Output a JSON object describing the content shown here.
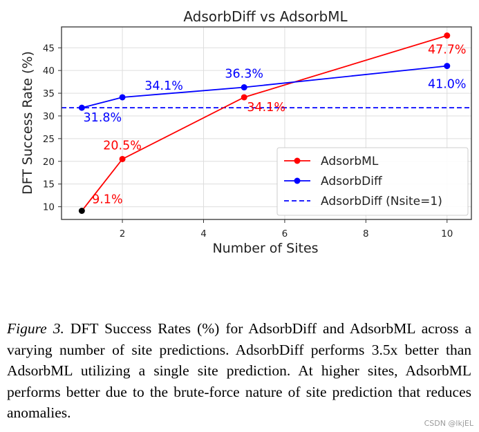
{
  "chart_data": {
    "type": "line",
    "title": "AdsorbDiff vs AdsorbML",
    "xlabel": "Number of Sites",
    "ylabel": "DFT Success Rate (%)",
    "xlim": [
      0.5,
      10.6
    ],
    "ylim": [
      7.2,
      49.6
    ],
    "xticks": [
      2,
      4,
      6,
      8,
      10
    ],
    "yticks": [
      10,
      15,
      20,
      25,
      30,
      35,
      40,
      45
    ],
    "grid": true,
    "legend_position": "center-right",
    "series": [
      {
        "name": "AdsorbML",
        "color": "#ff0000",
        "x": [
          1,
          2,
          5,
          10
        ],
        "y": [
          9.1,
          20.5,
          34.1,
          47.7
        ],
        "labels": [
          "9.1%",
          "20.5%",
          "34.1%",
          "47.7%"
        ],
        "first_point_color": "#000000"
      },
      {
        "name": "AdsorbDiff",
        "color": "#0000ff",
        "x": [
          1,
          2,
          5,
          10
        ],
        "y": [
          31.8,
          34.1,
          36.3,
          41.0
        ],
        "labels": [
          "31.8%",
          "34.1%",
          "36.3%",
          "41.0%"
        ]
      }
    ],
    "reference_line": {
      "name": "AdsorbDiff (Nsite=1)",
      "y": 31.8,
      "color": "#0000ff",
      "style": "dashed"
    }
  },
  "caption": {
    "label": "Figure 3.",
    "text": " DFT Success Rates (%) for AdsorbDiff and AdsorbML across a varying number of site predictions. AdsorbDiff performs 3.5x better than AdsorbML utilizing a single site prediction. At higher sites, AdsorbML performs better due to the brute-force nature of site prediction that reduces anomalies."
  },
  "watermark": "CSDN @lkjEL"
}
